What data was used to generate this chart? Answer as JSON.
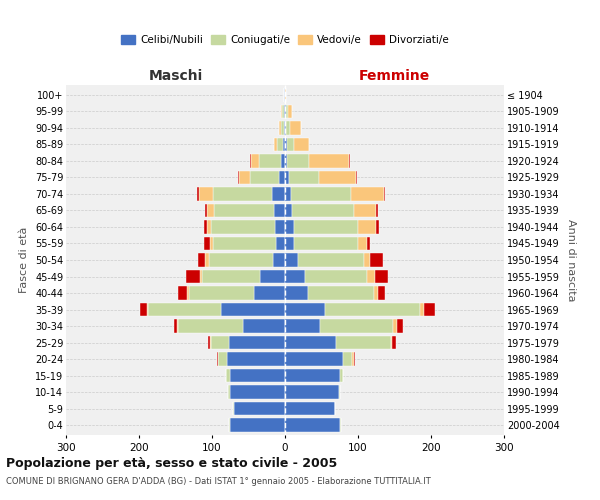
{
  "age_groups": [
    "0-4",
    "5-9",
    "10-14",
    "15-19",
    "20-24",
    "25-29",
    "30-34",
    "35-39",
    "40-44",
    "45-49",
    "50-54",
    "55-59",
    "60-64",
    "65-69",
    "70-74",
    "75-79",
    "80-84",
    "85-89",
    "90-94",
    "95-99",
    "100+"
  ],
  "birth_years": [
    "2000-2004",
    "1995-1999",
    "1990-1994",
    "1985-1989",
    "1980-1984",
    "1975-1979",
    "1970-1974",
    "1965-1969",
    "1960-1964",
    "1955-1959",
    "1950-1954",
    "1945-1949",
    "1940-1944",
    "1935-1939",
    "1930-1934",
    "1925-1929",
    "1920-1924",
    "1915-1919",
    "1910-1914",
    "1905-1909",
    "≤ 1904"
  ],
  "male_celibi": [
    76,
    70,
    76,
    76,
    80,
    77,
    58,
    87,
    42,
    34,
    16,
    13,
    14,
    15,
    18,
    8,
    5,
    3,
    2,
    2,
    1
  ],
  "male_coniugati": [
    1,
    1,
    2,
    5,
    12,
    25,
    88,
    100,
    90,
    80,
    88,
    85,
    88,
    82,
    80,
    40,
    30,
    8,
    4,
    2,
    0
  ],
  "male_vedovi": [
    0,
    0,
    0,
    0,
    0,
    1,
    2,
    2,
    2,
    2,
    5,
    5,
    5,
    10,
    20,
    15,
    12,
    4,
    2,
    1,
    0
  ],
  "male_divorziati": [
    0,
    0,
    0,
    0,
    1,
    2,
    4,
    10,
    12,
    20,
    10,
    8,
    4,
    2,
    2,
    2,
    1,
    0,
    0,
    0,
    0
  ],
  "female_celibi": [
    76,
    68,
    74,
    75,
    80,
    70,
    48,
    55,
    32,
    28,
    18,
    12,
    12,
    10,
    8,
    5,
    3,
    3,
    2,
    2,
    0
  ],
  "female_coniugati": [
    1,
    1,
    2,
    5,
    12,
    75,
    100,
    130,
    90,
    85,
    90,
    88,
    88,
    85,
    82,
    42,
    30,
    10,
    5,
    2,
    0
  ],
  "female_vedovi": [
    0,
    0,
    0,
    0,
    2,
    2,
    5,
    5,
    5,
    10,
    8,
    12,
    25,
    30,
    45,
    50,
    55,
    20,
    15,
    5,
    2
  ],
  "female_divorziati": [
    0,
    0,
    0,
    0,
    2,
    5,
    8,
    15,
    10,
    18,
    18,
    5,
    4,
    2,
    2,
    1,
    1,
    0,
    0,
    0,
    0
  ],
  "color_celibi": "#4472c4",
  "color_coniugati": "#c6d9a0",
  "color_vedovi": "#fac67b",
  "color_divorziati": "#cc0000",
  "title": "Popolazione per età, sesso e stato civile - 2005",
  "subtitle": "COMUNE DI BRIGNANO GERA D'ADDA (BG) - Dati ISTAT 1° gennaio 2005 - Elaborazione TUTTITALIA.IT",
  "ylabel_left": "Fasce di età",
  "ylabel_right": "Anni di nascita",
  "xlabel_maschi": "Maschi",
  "xlabel_femmine": "Femmine",
  "xlim": 300,
  "bg_color": "#f0f0f0",
  "grid_color": "#cccccc",
  "maschi_color": "#333333",
  "femmine_color": "#cc0000"
}
